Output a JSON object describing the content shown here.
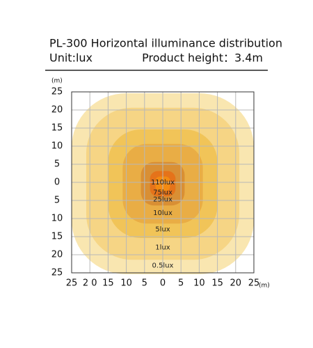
{
  "chart_data": {
    "type": "contour",
    "title": "PL-300 Horizontal illuminance distribution",
    "unit": "Unit:lux",
    "height_note": "Product height：3.4m",
    "x_unit": "(m)",
    "y_unit": "(m)",
    "xlim": [
      -25,
      25
    ],
    "ylim": [
      -25,
      25
    ],
    "xticks": [
      {
        "value": -25,
        "label": "25"
      },
      {
        "value": -20,
        "label": "2 0"
      },
      {
        "value": -15,
        "label": "15"
      },
      {
        "value": -10,
        "label": "10"
      },
      {
        "value": -5,
        "label": "5"
      },
      0,
      5,
      10,
      15,
      20,
      25
    ],
    "yticks": [
      {
        "value": 25,
        "label": "25"
      },
      {
        "value": 20,
        "label": "20"
      },
      {
        "value": 15,
        "label": "15"
      },
      {
        "value": 10,
        "label": "10"
      },
      {
        "value": 5,
        "label": "5"
      },
      {
        "value": 0,
        "label": "0"
      },
      {
        "value": -5,
        "label": "5"
      },
      {
        "value": -10,
        "label": "10"
      },
      {
        "value": -15,
        "label": "15"
      },
      {
        "value": -20,
        "label": "20"
      },
      {
        "value": -25,
        "label": "25"
      }
    ],
    "grid": true,
    "levels": [
      0.5,
      1,
      5,
      10,
      25,
      75,
      110
    ],
    "value_labels": [
      "0.5lux",
      "1lux",
      "5lux",
      "10lux",
      "25lux",
      "75lux",
      "110lux"
    ],
    "radii": [
      25,
      21,
      15,
      11,
      6,
      3.5,
      2
    ],
    "colors": [
      "#f9e6b0",
      "#f6d585",
      "#f1c458",
      "#e9ad45",
      "#d98f34",
      "#e5731a",
      "#f28a12"
    ]
  }
}
